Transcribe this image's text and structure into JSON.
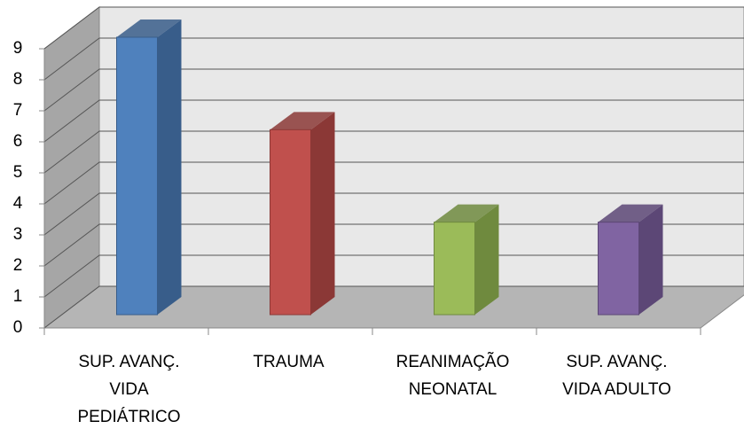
{
  "chart_data": {
    "type": "bar3d",
    "categories": [
      "SUP. AVANÇ. VIDA PEDIÁTRICO",
      "TRAUMA",
      "REANIMAÇÃO NEONATAL",
      "SUP. AVANÇ. VIDA ADULTO"
    ],
    "values": [
      9,
      6,
      3,
      3
    ],
    "colors": [
      "#4f81bd",
      "#c0504d",
      "#9bbb59",
      "#8064a2"
    ],
    "side_colors": [
      "#385d8a",
      "#8b3836",
      "#6f8a3e",
      "#5c4776"
    ],
    "ylim": [
      0,
      9
    ],
    "yticks": [
      0,
      1,
      2,
      3,
      4,
      5,
      6,
      7,
      8,
      9
    ],
    "grid": true
  }
}
